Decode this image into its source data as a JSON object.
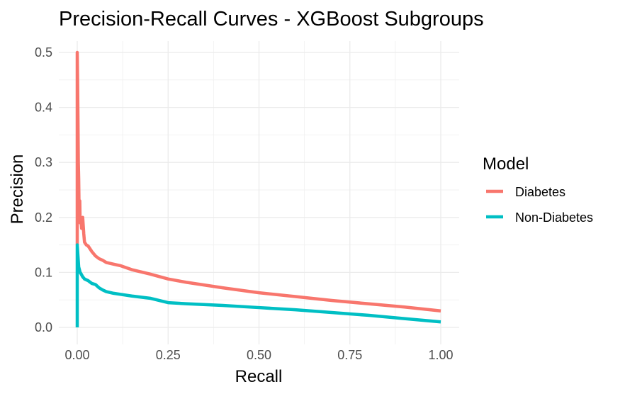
{
  "chart_data": {
    "type": "line",
    "title": "Precision-Recall Curves - XGBoost Subgroups",
    "xlabel": "Recall",
    "ylabel": "Precision",
    "xlim": [
      0,
      1
    ],
    "ylim": [
      0,
      0.5
    ],
    "x_ticks": [
      "0.00",
      "0.25",
      "0.50",
      "0.75",
      "1.00"
    ],
    "y_ticks": [
      "0.0",
      "0.1",
      "0.2",
      "0.3",
      "0.4",
      "0.5"
    ],
    "grid": true,
    "legend": {
      "title": "Model",
      "placement": "right"
    },
    "series": [
      {
        "name": "Diabetes",
        "color": "#F8766D",
        "x": [
          0.0,
          0.0,
          0.001,
          0.002,
          0.003,
          0.004,
          0.005,
          0.006,
          0.007,
          0.008,
          0.01,
          0.012,
          0.015,
          0.018,
          0.02,
          0.025,
          0.03,
          0.04,
          0.05,
          0.06,
          0.07,
          0.08,
          0.1,
          0.12,
          0.15,
          0.2,
          0.25,
          0.3,
          0.4,
          0.5,
          0.6,
          0.7,
          0.8,
          0.9,
          1.0
        ],
        "values": [
          0.15,
          0.5,
          0.45,
          0.38,
          0.3,
          0.27,
          0.22,
          0.2,
          0.23,
          0.19,
          0.2,
          0.18,
          0.2,
          0.17,
          0.155,
          0.15,
          0.148,
          0.138,
          0.13,
          0.125,
          0.122,
          0.118,
          0.115,
          0.112,
          0.105,
          0.097,
          0.088,
          0.082,
          0.072,
          0.063,
          0.056,
          0.049,
          0.043,
          0.037,
          0.03
        ]
      },
      {
        "name": "Non-Diabetes",
        "color": "#00BFC4",
        "x": [
          0.0,
          0.0,
          0.002,
          0.004,
          0.006,
          0.008,
          0.01,
          0.015,
          0.02,
          0.03,
          0.04,
          0.05,
          0.06,
          0.07,
          0.08,
          0.1,
          0.12,
          0.15,
          0.2,
          0.25,
          0.3,
          0.4,
          0.5,
          0.6,
          0.7,
          0.8,
          0.9,
          1.0
        ],
        "values": [
          0.0,
          0.15,
          0.13,
          0.11,
          0.105,
          0.1,
          0.098,
          0.092,
          0.088,
          0.085,
          0.08,
          0.078,
          0.072,
          0.068,
          0.065,
          0.062,
          0.06,
          0.057,
          0.053,
          0.045,
          0.043,
          0.04,
          0.036,
          0.032,
          0.027,
          0.022,
          0.016,
          0.01
        ]
      }
    ]
  }
}
